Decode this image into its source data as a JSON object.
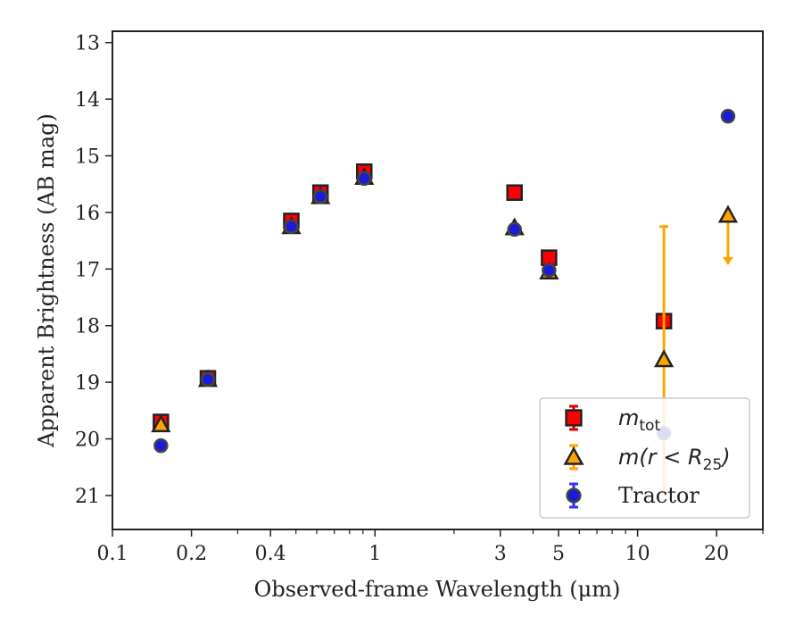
{
  "chart_data": {
    "type": "scatter",
    "title": "",
    "xlabel": "Observed-frame Wavelength (μm)",
    "ylabel": "Apparent Brightness (AB mag)",
    "xscale": "log",
    "xlim": [
      0.1,
      30
    ],
    "ylim": [
      21.6,
      12.8
    ],
    "y_inverted": true,
    "x_ticks": [
      {
        "value": 0.1,
        "label": "0.1"
      },
      {
        "value": 0.2,
        "label": "0.2"
      },
      {
        "value": 0.4,
        "label": "0.4"
      },
      {
        "value": 1,
        "label": "1"
      },
      {
        "value": 3,
        "label": "3"
      },
      {
        "value": 5,
        "label": "5"
      },
      {
        "value": 10,
        "label": "10"
      },
      {
        "value": 20,
        "label": "20"
      }
    ],
    "x_minor_ticks": [
      0.3,
      0.5,
      0.6,
      0.7,
      0.8,
      0.9,
      2,
      4,
      6,
      7,
      8,
      9,
      30
    ],
    "y_ticks": [
      13,
      14,
      15,
      16,
      17,
      18,
      19,
      20,
      21
    ],
    "legend_position": "lower-right",
    "series": [
      {
        "name": "m_tot",
        "legend": {
          "main": "m",
          "sub": "tot"
        },
        "marker": "square",
        "color": "#ff0000",
        "edge_color": "#222222",
        "errorbar_color": "#e00000",
        "points": [
          {
            "x": 0.153,
            "y": 19.7,
            "err": 0.05
          },
          {
            "x": 0.231,
            "y": 18.93,
            "err": 0.04
          },
          {
            "x": 0.48,
            "y": 16.15,
            "err": 0.04
          },
          {
            "x": 0.62,
            "y": 15.65,
            "err": 0.04
          },
          {
            "x": 0.91,
            "y": 15.28,
            "err": 0.04
          },
          {
            "x": 3.4,
            "y": 15.65,
            "err": 0.03
          },
          {
            "x": 4.6,
            "y": 16.8,
            "err": 0.03
          },
          {
            "x": 12.6,
            "y": 17.92,
            "err": 0
          }
        ]
      },
      {
        "name": "m(r < R25)",
        "legend": {
          "text": "m(r < R",
          "sub": "25",
          "close": ")"
        },
        "marker": "triangle",
        "color": "#ffa500",
        "edge_color": "#222222",
        "errorbar_color": "#ffa500",
        "points": [
          {
            "x": 0.153,
            "y": 19.75,
            "err": 0.03
          },
          {
            "x": 0.231,
            "y": 18.95,
            "err": 0.03
          },
          {
            "x": 0.48,
            "y": 16.25,
            "err": 0.03
          },
          {
            "x": 0.62,
            "y": 15.72,
            "err": 0.03
          },
          {
            "x": 0.91,
            "y": 15.38,
            "err": 0.03
          },
          {
            "x": 3.4,
            "y": 16.27,
            "err": 0.03
          },
          {
            "x": 4.6,
            "y": 17.05,
            "err": 0.03
          },
          {
            "x": 12.6,
            "y": 18.6,
            "err_low": 2.35,
            "err_high": 2.35
          },
          {
            "x": 22.1,
            "y": 16.05,
            "upper_limit": true,
            "arrow_to": 16.9
          }
        ]
      },
      {
        "name": "Tractor",
        "legend": {
          "text": "Tractor"
        },
        "marker": "circle",
        "color": "#1a1adb",
        "edge_color": "#444444",
        "errorbar_color": "#3030ff",
        "points": [
          {
            "x": 0.153,
            "y": 20.12,
            "err": 0.04
          },
          {
            "x": 0.231,
            "y": 18.95,
            "err": 0.03
          },
          {
            "x": 0.48,
            "y": 16.25,
            "err": 0.03
          },
          {
            "x": 0.62,
            "y": 15.72,
            "err": 0.03
          },
          {
            "x": 0.91,
            "y": 15.4,
            "err": 0.03
          },
          {
            "x": 3.4,
            "y": 16.3,
            "err": 0.03
          },
          {
            "x": 4.6,
            "y": 17.02,
            "err": 0.03
          },
          {
            "x": 12.6,
            "y": 19.9,
            "err": 0.08
          },
          {
            "x": 22.1,
            "y": 14.3,
            "err": 0.04
          }
        ]
      }
    ]
  }
}
